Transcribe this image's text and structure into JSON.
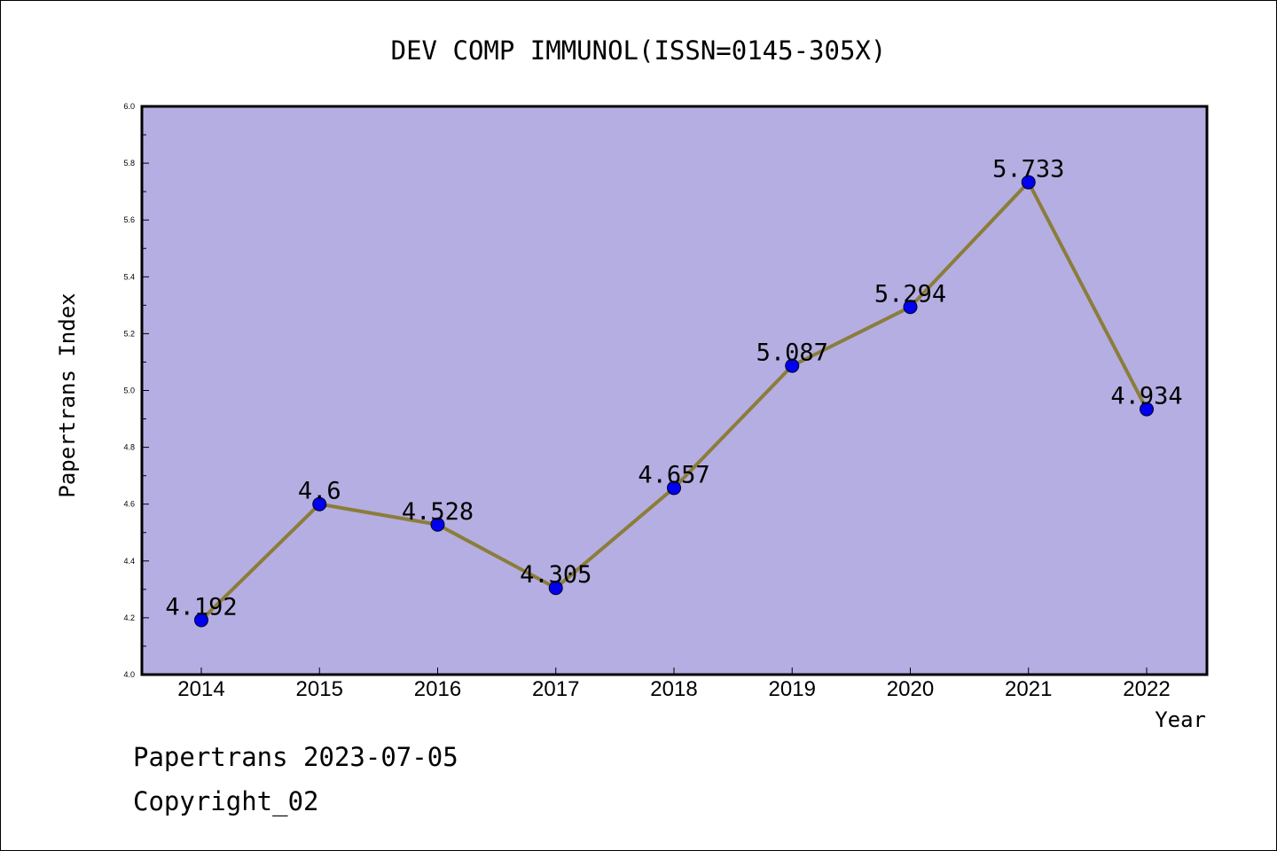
{
  "chart_data": {
    "type": "line",
    "title": "DEV COMP IMMUNOL(ISSN=0145-305X)",
    "xlabel": "Year",
    "ylabel": "Papertrans Index",
    "categories": [
      "2014",
      "2015",
      "2016",
      "2017",
      "2018",
      "2019",
      "2020",
      "2021",
      "2022"
    ],
    "values": [
      4.192,
      4.6,
      4.528,
      4.305,
      4.657,
      5.087,
      5.294,
      5.733,
      4.934
    ],
    "data_labels": [
      "4.192",
      "4.6",
      "4.528",
      "4.305",
      "4.657",
      "5.087",
      "5.294",
      "5.733",
      "4.934"
    ],
    "ylim": [
      4.0,
      6.0
    ],
    "yticks": [
      "4.0",
      "4.2",
      "4.4",
      "4.6",
      "4.8",
      "5.0",
      "5.2",
      "5.4",
      "5.6",
      "5.8",
      "6.0"
    ],
    "grid": false,
    "colors": {
      "plot_background": "#b4aee2",
      "line": "#8b7d3a",
      "marker": "#0000ee"
    }
  },
  "footer": {
    "line1": "Papertrans 2023-07-05",
    "line2": "Copyright_02"
  }
}
